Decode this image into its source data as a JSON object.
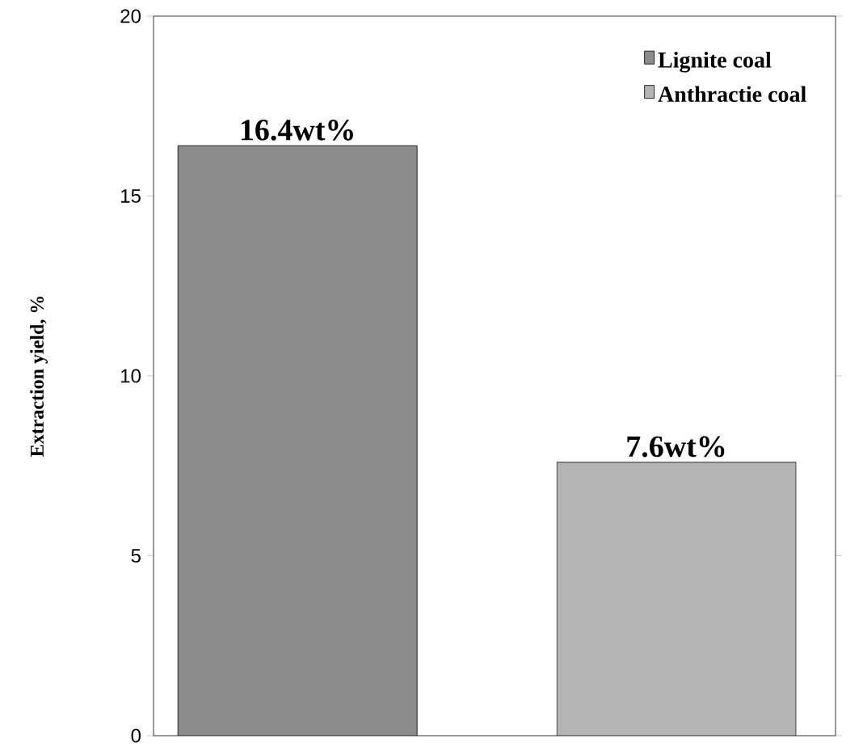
{
  "chart_data": {
    "type": "bar",
    "ylabel": "Extraction yield, %",
    "categories": [
      null,
      null
    ],
    "series": [
      {
        "name": "Lignite coal",
        "color": "#8c8c8c",
        "values": [
          16.4,
          0
        ],
        "value_labels": [
          "16.4wt%",
          null
        ]
      },
      {
        "name": "Anthractie coal",
        "color": "#b4b4b4",
        "values": [
          0,
          7.6
        ],
        "value_labels": [
          null,
          "7.6wt%"
        ]
      }
    ],
    "ylim": [
      0,
      20
    ],
    "yticks": [
      0,
      5,
      10,
      15,
      20
    ],
    "legend": "top right",
    "stacked": true
  }
}
